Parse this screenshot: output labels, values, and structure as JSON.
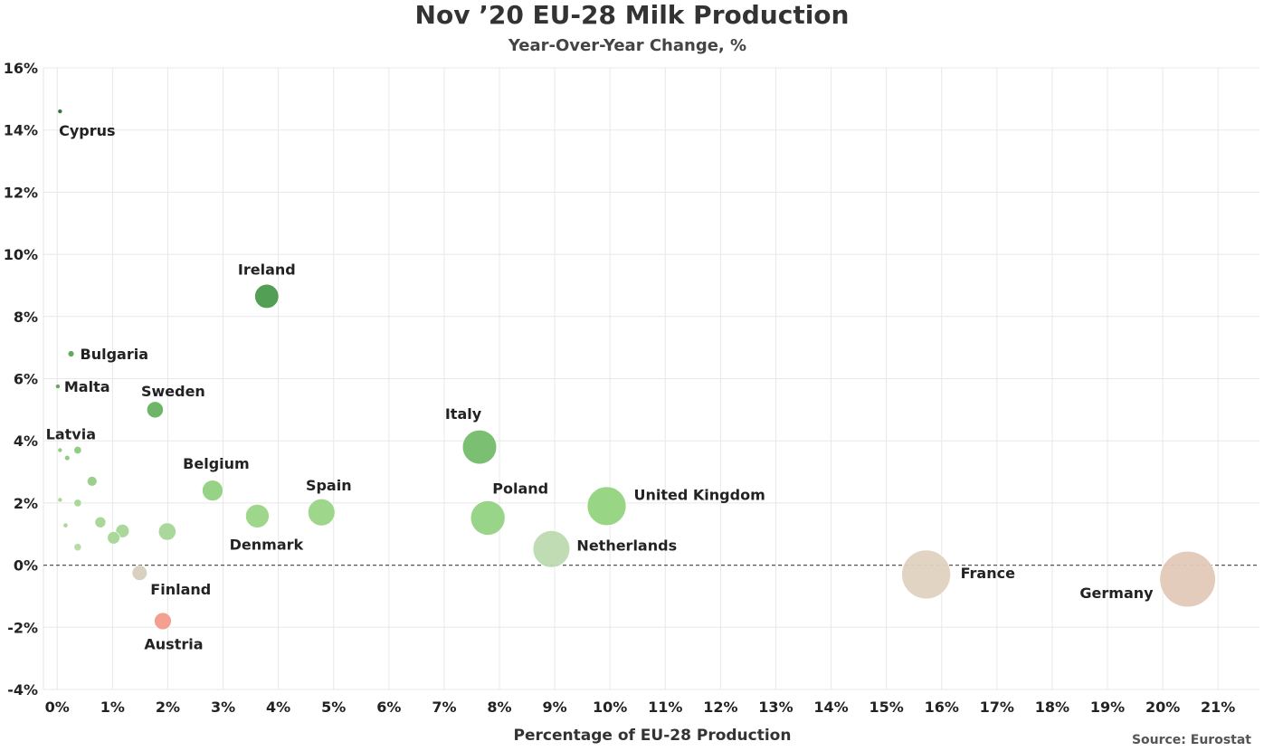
{
  "chart_data": {
    "type": "scatter",
    "title": "Nov ’20 EU-28 Milk Production",
    "subtitle": "Year-Over-Year Change, %",
    "xlabel": "Percentage of EU-28 Production",
    "ylabel": "",
    "source": "Source: Eurostat",
    "xlim": [
      -0.0025,
      0.2175
    ],
    "ylim": [
      -0.04,
      0.16
    ],
    "x_ticks": [
      0,
      0.01,
      0.02,
      0.03,
      0.04,
      0.05,
      0.06,
      0.07,
      0.08,
      0.09,
      0.1,
      0.11,
      0.12,
      0.13,
      0.14,
      0.15,
      0.16,
      0.17,
      0.18,
      0.19,
      0.2,
      0.21
    ],
    "x_tick_labels": [
      "0%",
      "1%",
      "2%",
      "3%",
      "4%",
      "5%",
      "6%",
      "7%",
      "8%",
      "9%",
      "10%",
      "11%",
      "12%",
      "13%",
      "14%",
      "15%",
      "16%",
      "17%",
      "18%",
      "19%",
      "20%",
      "21%"
    ],
    "y_ticks": [
      -0.04,
      -0.02,
      0,
      0.02,
      0.04,
      0.06,
      0.08,
      0.1,
      0.12,
      0.14,
      0.16
    ],
    "y_tick_labels": [
      "-4%",
      "-2%",
      "0%",
      "2%",
      "4%",
      "6%",
      "8%",
      "10%",
      "12%",
      "14%",
      "16%"
    ],
    "grid": true,
    "reference_line": {
      "y": 0,
      "style": "dashed"
    },
    "bubble_size": "share of EU-28 production",
    "points": [
      {
        "label": "Cyprus",
        "x": 0.0005,
        "y": 0.146,
        "color": "#2f6e35"
      },
      {
        "label": "Ireland",
        "x": 0.0379,
        "y": 0.0865,
        "color": "#4a9a4d"
      },
      {
        "label": "Bulgaria",
        "x": 0.0025,
        "y": 0.068,
        "color": "#5aa555"
      },
      {
        "label": "Malta",
        "x": 0.0001,
        "y": 0.0575,
        "color": "#5aa555"
      },
      {
        "label": "Sweden",
        "x": 0.0177,
        "y": 0.05,
        "color": "#66b25f"
      },
      {
        "label": "Italy",
        "x": 0.0764,
        "y": 0.038,
        "color": "#74bd6a"
      },
      {
        "label": "Latvia",
        "x": 0.0005,
        "y": 0.037,
        "color": "#8bc97b"
      },
      {
        "label": "",
        "x": 0.0037,
        "y": 0.037,
        "color": "#8bc97b"
      },
      {
        "label": "",
        "x": 0.0018,
        "y": 0.0345,
        "color": "#8bc97b"
      },
      {
        "label": "",
        "x": 0.0063,
        "y": 0.027,
        "color": "#96cd86"
      },
      {
        "label": "Belgium",
        "x": 0.0281,
        "y": 0.024,
        "color": "#90d17f"
      },
      {
        "label": "United Kingdom",
        "x": 0.0994,
        "y": 0.019,
        "color": "#92d47f"
      },
      {
        "label": "",
        "x": 0.0005,
        "y": 0.021,
        "color": "#a5d696"
      },
      {
        "label": "",
        "x": 0.0037,
        "y": 0.02,
        "color": "#a5d696"
      },
      {
        "label": "Spain",
        "x": 0.0478,
        "y": 0.017,
        "color": "#99d486"
      },
      {
        "label": "Denmark",
        "x": 0.0362,
        "y": 0.0158,
        "color": "#99d486"
      },
      {
        "label": "Poland",
        "x": 0.0779,
        "y": 0.0152,
        "color": "#93d382"
      },
      {
        "label": "",
        "x": 0.0078,
        "y": 0.0138,
        "color": "#a5d696"
      },
      {
        "label": "",
        "x": 0.0015,
        "y": 0.0128,
        "color": "#a5d696"
      },
      {
        "label": "",
        "x": 0.0118,
        "y": 0.011,
        "color": "#a5d696"
      },
      {
        "label": "",
        "x": 0.0199,
        "y": 0.0108,
        "color": "#a5d696"
      },
      {
        "label": "",
        "x": 0.0102,
        "y": 0.0088,
        "color": "#a5d696"
      },
      {
        "label": "",
        "x": 0.0037,
        "y": 0.0058,
        "color": "#b3d9a6"
      },
      {
        "label": "Netherlands",
        "x": 0.0894,
        "y": 0.0052,
        "color": "#bcdab1"
      },
      {
        "label": "Finland",
        "x": 0.0149,
        "y": -0.0025,
        "color": "#d6cfbc"
      },
      {
        "label": "France",
        "x": 0.1572,
        "y": -0.003,
        "color": "#e0d2c0"
      },
      {
        "label": "Germany",
        "x": 0.2045,
        "y": -0.0045,
        "color": "#e3c9b8"
      },
      {
        "label": "Austria",
        "x": 0.0191,
        "y": -0.018,
        "color": "#f39b8a"
      }
    ]
  }
}
